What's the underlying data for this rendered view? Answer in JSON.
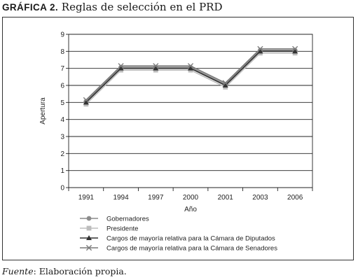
{
  "figure": {
    "number_label": "GRÁFICA 2.",
    "title_main": "Reglas de selección en el",
    "title_party": "PRD"
  },
  "chart_data": {
    "type": "line",
    "categories": [
      "1991",
      "1994",
      "1997",
      "2000",
      "2001",
      "2003",
      "2006"
    ],
    "xlabel": "Año",
    "ylabel": "Apertura",
    "ylim": [
      0,
      9
    ],
    "yticks": [
      0,
      1,
      2,
      3,
      4,
      5,
      6,
      7,
      8,
      9
    ],
    "grid": "horizontal",
    "legend_position": "bottom",
    "series": [
      {
        "name": "Gobernadores",
        "values": [
          5,
          7,
          7,
          7,
          6,
          8,
          8
        ],
        "marker": "circle",
        "color": "#8c8c8c"
      },
      {
        "name": "Presidente",
        "values": [
          5,
          7,
          7,
          7,
          6,
          8,
          8
        ],
        "marker": "square",
        "color": "#bdbdbd"
      },
      {
        "name": "Cargos de mayoría relativa para la Cámara de Diputados",
        "values": [
          5,
          7,
          7,
          7,
          6,
          8,
          8
        ],
        "marker": "triangle",
        "color": "#333333"
      },
      {
        "name": "Cargos de mayoría relativa para la Cámara de Senadores",
        "values": [
          5,
          7,
          7,
          7,
          6,
          8,
          8
        ],
        "marker": "x",
        "color": "#7a7a7a"
      }
    ]
  },
  "source": {
    "label": "Fuente",
    "text": ": Elaboración propia."
  }
}
